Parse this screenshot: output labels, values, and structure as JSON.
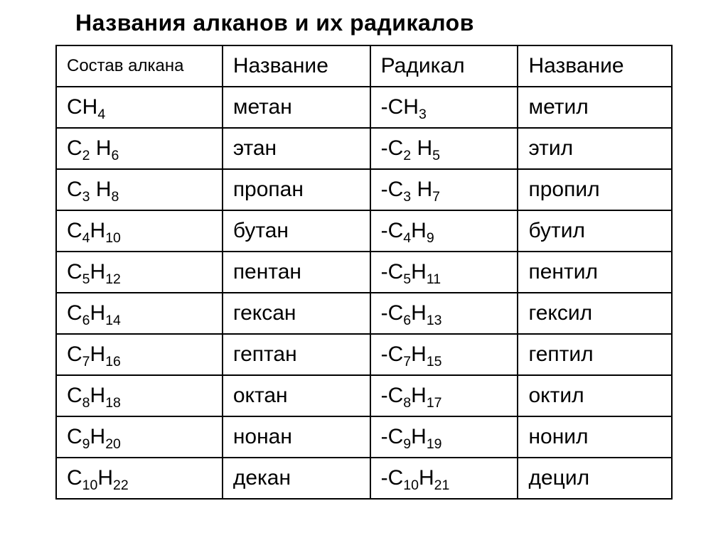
{
  "title": "Названия алканов и  их радикалов",
  "table": {
    "columns": [
      "Состав алкана",
      "Название",
      "Радикал",
      "Название"
    ],
    "rows": [
      {
        "alkane_formula": "CH_4",
        "alkane_name": "метан",
        "radical_formula": "-CH_3",
        "radical_name": "метил"
      },
      {
        "alkane_formula": "C_2 H_6",
        "alkane_name": "этан",
        "radical_formula": "-C_2 H_5",
        "radical_name": "этил"
      },
      {
        "alkane_formula": "C_3 H_8",
        "alkane_name": "пропан",
        "radical_formula": "-C_3 H_7",
        "radical_name": "пропил"
      },
      {
        "alkane_formula": "C_4H_10",
        "alkane_name": "бутан",
        "radical_formula": "-C_4H_9",
        "radical_name": "бутил"
      },
      {
        "alkane_formula": "C_5H_12",
        "alkane_name": "пентан",
        "radical_formula": "-C_5H_11",
        "radical_name": "пентил"
      },
      {
        "alkane_formula": "C_6H_14",
        "alkane_name": "гексан",
        "radical_formula": "-C_6H_13",
        "radical_name": "гексил"
      },
      {
        "alkane_formula": "C_7H_16",
        "alkane_name": "гептан",
        "radical_formula": "-C_7H_15",
        "radical_name": "гептил"
      },
      {
        "alkane_formula": "C_8H_18",
        "alkane_name": "октан",
        "radical_formula": "-C_8H_17",
        "radical_name": "октил"
      },
      {
        "alkane_formula": "C_9H_20",
        "alkane_name": "нонан",
        "radical_formula": "-C_9H_19",
        "radical_name": "нонил"
      },
      {
        "alkane_formula": "C_10H_22",
        "alkane_name": "декан",
        "radical_formula": "-C_10H_21",
        "radical_name": "децил"
      }
    ],
    "border_color": "#000000",
    "text_color": "#000000",
    "background_color": "#ffffff",
    "header_fontsize": 30,
    "cell_fontsize": 30,
    "title_fontsize": 32
  }
}
